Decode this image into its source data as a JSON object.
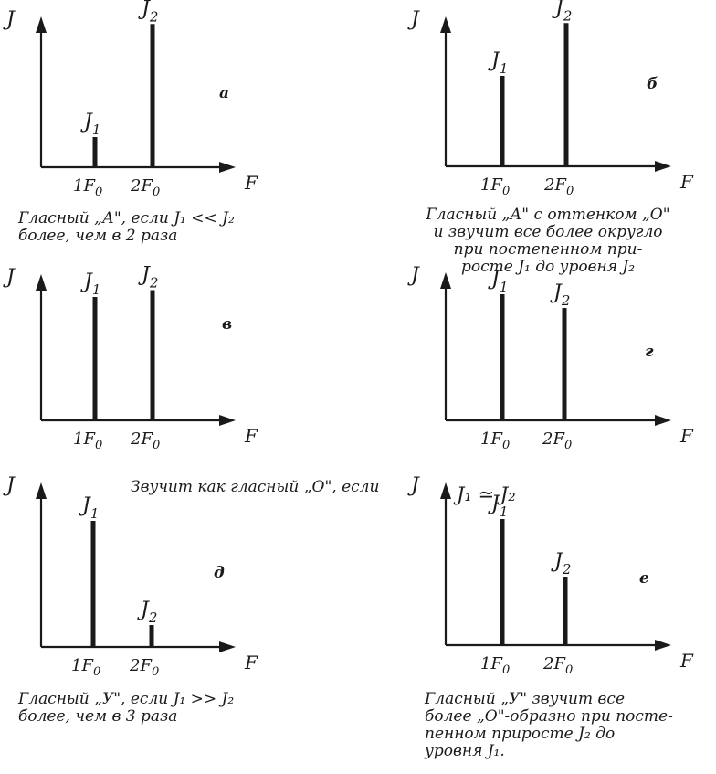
{
  "panels": [
    {
      "id": "a",
      "letter": "а",
      "y_axis": "J",
      "x_axis": "F",
      "ticks": [
        "1F",
        "2F"
      ],
      "tick_sub": "0",
      "peak_labels": [
        {
          "main": "J",
          "sub": "1"
        },
        {
          "main": "J",
          "sub": "2"
        }
      ],
      "relative_amplitudes": [
        0.2,
        0.95
      ],
      "caption": [
        "Гласный „А\", если J₁ << J₂",
        "более, чем в 2 раза"
      ]
    },
    {
      "id": "b",
      "letter": "б",
      "y_axis": "J",
      "x_axis": "F",
      "ticks": [
        "1F",
        "2F"
      ],
      "tick_sub": "0",
      "peak_labels": [
        {
          "main": "J",
          "sub": "1"
        },
        {
          "main": "J",
          "sub": "2"
        }
      ],
      "relative_amplitudes": [
        0.6,
        0.95
      ],
      "caption": [
        "Гласный „А\" с оттенком „О\"",
        "и звучит все более округло",
        "при постепенном при-",
        "росте J₁ до уровня J₂"
      ]
    },
    {
      "id": "v",
      "letter": "в",
      "y_axis": "J",
      "x_axis": "F",
      "ticks": [
        "1F",
        "2F"
      ],
      "tick_sub": "0",
      "peak_labels": [
        {
          "main": "J",
          "sub": "1"
        },
        {
          "main": "J",
          "sub": "2"
        }
      ],
      "relative_amplitudes": [
        0.9,
        0.95
      ],
      "caption": []
    },
    {
      "id": "g",
      "letter": "г",
      "y_axis": "J",
      "x_axis": "F",
      "ticks": [
        "1F",
        "2F"
      ],
      "tick_sub": "0",
      "peak_labels": [
        {
          "main": "J",
          "sub": "1"
        },
        {
          "main": "J",
          "sub": "2"
        }
      ],
      "relative_amplitudes": [
        0.92,
        0.82
      ],
      "caption": []
    },
    {
      "id": "d",
      "letter": "д",
      "y_axis": "J",
      "x_axis": "F",
      "ticks": [
        "1F",
        "2F"
      ],
      "tick_sub": "0",
      "peak_labels": [
        {
          "main": "J",
          "sub": "1"
        },
        {
          "main": "J",
          "sub": "2"
        }
      ],
      "relative_amplitudes": [
        0.92,
        0.16
      ],
      "caption": [
        "Гласный „У\", если J₁ >> J₂",
        "более, чем в 3 раза"
      ]
    },
    {
      "id": "e",
      "letter": "е",
      "y_axis": "J",
      "x_axis": "F",
      "ticks": [
        "1F",
        "2F"
      ],
      "tick_sub": "0",
      "peak_labels": [
        {
          "main": "J",
          "sub": "1"
        },
        {
          "main": "J",
          "sub": "2"
        }
      ],
      "relative_amplitudes": [
        0.92,
        0.5
      ],
      "caption": [
        "Гласный „У\" звучит все",
        "более „О\"-образно при посте-",
        "пенном приросте J₂  до",
        "уровня  J₁."
      ]
    }
  ],
  "middle_note": {
    "text": "Звучит как гласный „О\", если",
    "condition": "J₁ ≃ J₂"
  }
}
